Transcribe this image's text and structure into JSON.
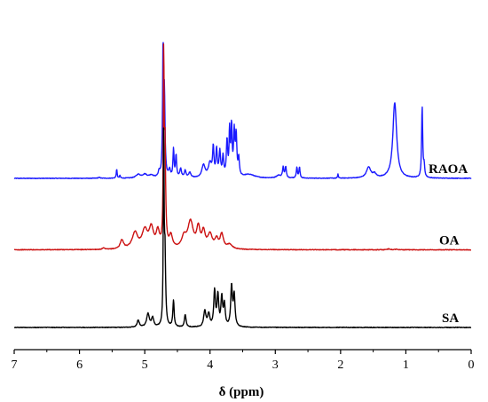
{
  "chart_data": {
    "type": "line",
    "xlabel": "δ (ppm)",
    "xlim": [
      7,
      0
    ],
    "x_reversed": true,
    "x_ticks": [
      "7",
      "6",
      "5",
      "4",
      "3",
      "2",
      "1",
      "0"
    ],
    "y_axis_shown": false,
    "grid": false,
    "legend": "none",
    "series": [
      {
        "name": "RAOA",
        "color": "#1a1aff",
        "baseline": 0.5,
        "peaks": [
          [
            5.7,
            1,
            0.02
          ],
          [
            5.43,
            10,
            0.008
          ],
          [
            5.38,
            3,
            0.008
          ],
          [
            5.1,
            4,
            0.04
          ],
          [
            5.0,
            4,
            0.04
          ],
          [
            4.9,
            3,
            0.04
          ],
          [
            4.78,
            6,
            0.015
          ],
          [
            4.72,
            140,
            0.008
          ],
          [
            4.7,
            90,
            0.012
          ],
          [
            4.62,
            8,
            0.015
          ],
          [
            4.56,
            32,
            0.01
          ],
          [
            4.52,
            25,
            0.01
          ],
          [
            4.45,
            10,
            0.015
          ],
          [
            4.38,
            8,
            0.015
          ],
          [
            4.31,
            6,
            0.02
          ],
          [
            4.1,
            14,
            0.03
          ],
          [
            4.0,
            16,
            0.03
          ],
          [
            3.95,
            32,
            0.012
          ],
          [
            3.9,
            30,
            0.012
          ],
          [
            3.85,
            28,
            0.015
          ],
          [
            3.8,
            22,
            0.012
          ],
          [
            3.74,
            40,
            0.012
          ],
          [
            3.7,
            50,
            0.01
          ],
          [
            3.67,
            55,
            0.01
          ],
          [
            3.63,
            48,
            0.012
          ],
          [
            3.6,
            45,
            0.012
          ],
          [
            3.56,
            20,
            0.012
          ],
          [
            3.4,
            4,
            0.1
          ],
          [
            2.95,
            3,
            0.04
          ],
          [
            2.88,
            12,
            0.012
          ],
          [
            2.84,
            12,
            0.012
          ],
          [
            2.67,
            12,
            0.01
          ],
          [
            2.63,
            12,
            0.01
          ],
          [
            2.04,
            5,
            0.006
          ],
          [
            1.57,
            12,
            0.04
          ],
          [
            1.48,
            4,
            0.03
          ],
          [
            1.17,
            85,
            0.035
          ],
          [
            0.75,
            80,
            0.01
          ],
          [
            0.72,
            12,
            0.01
          ]
        ]
      },
      {
        "name": "OA",
        "color": "#cc1111",
        "baseline": 0.27,
        "peaks": [
          [
            5.63,
            1.5,
            0.02
          ],
          [
            5.35,
            10,
            0.03
          ],
          [
            5.15,
            18,
            0.05
          ],
          [
            5.0,
            20,
            0.05
          ],
          [
            4.9,
            22,
            0.04
          ],
          [
            4.8,
            18,
            0.03
          ],
          [
            4.71,
            210,
            0.007
          ],
          [
            4.69,
            110,
            0.012
          ],
          [
            4.6,
            14,
            0.03
          ],
          [
            4.4,
            12,
            0.04
          ],
          [
            4.3,
            30,
            0.05
          ],
          [
            4.18,
            22,
            0.03
          ],
          [
            4.1,
            18,
            0.03
          ],
          [
            4.0,
            16,
            0.04
          ],
          [
            3.9,
            10,
            0.03
          ],
          [
            3.82,
            16,
            0.03
          ],
          [
            3.7,
            5,
            0.05
          ],
          [
            1.26,
            1.2,
            0.02
          ],
          [
            1.15,
            0.6,
            0.02
          ]
        ]
      },
      {
        "name": "SA",
        "color": "#000000",
        "baseline": 0.02,
        "peaks": [
          [
            5.1,
            8,
            0.02
          ],
          [
            4.95,
            15,
            0.025
          ],
          [
            4.88,
            10,
            0.02
          ],
          [
            4.71,
            215,
            0.007
          ],
          [
            4.69,
            80,
            0.012
          ],
          [
            4.56,
            30,
            0.012
          ],
          [
            4.38,
            14,
            0.015
          ],
          [
            4.08,
            18,
            0.02
          ],
          [
            4.02,
            14,
            0.02
          ],
          [
            3.93,
            40,
            0.015
          ],
          [
            3.88,
            35,
            0.015
          ],
          [
            3.82,
            32,
            0.015
          ],
          [
            3.78,
            24,
            0.015
          ],
          [
            3.67,
            45,
            0.015
          ],
          [
            3.63,
            35,
            0.015
          ]
        ]
      }
    ]
  }
}
